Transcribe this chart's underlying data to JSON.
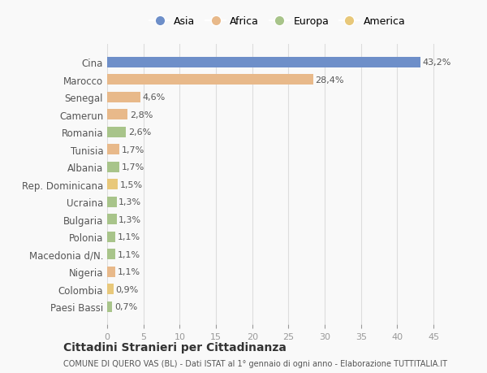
{
  "categories": [
    "Cina",
    "Marocco",
    "Senegal",
    "Camerun",
    "Romania",
    "Tunisia",
    "Albania",
    "Rep. Dominicana",
    "Ucraina",
    "Bulgaria",
    "Polonia",
    "Macedonia d/N.",
    "Nigeria",
    "Colombia",
    "Paesi Bassi"
  ],
  "values": [
    43.2,
    28.4,
    4.6,
    2.8,
    2.6,
    1.7,
    1.7,
    1.5,
    1.3,
    1.3,
    1.1,
    1.1,
    1.1,
    0.9,
    0.7
  ],
  "labels": [
    "43,2%",
    "28,4%",
    "4,6%",
    "2,8%",
    "2,6%",
    "1,7%",
    "1,7%",
    "1,5%",
    "1,3%",
    "1,3%",
    "1,1%",
    "1,1%",
    "1,1%",
    "0,9%",
    "0,7%"
  ],
  "colors": [
    "#6e8fc9",
    "#e8b98a",
    "#e8b98a",
    "#e8b98a",
    "#a8c48a",
    "#e8b98a",
    "#a8c48a",
    "#e8c87a",
    "#a8c48a",
    "#a8c48a",
    "#a8c48a",
    "#a8c48a",
    "#e8b98a",
    "#e8c87a",
    "#a8c48a"
  ],
  "legend_labels": [
    "Asia",
    "Africa",
    "Europa",
    "America"
  ],
  "legend_colors": [
    "#6e8fc9",
    "#e8b98a",
    "#a8c48a",
    "#e8c87a"
  ],
  "xlim": [
    0,
    47
  ],
  "xticks": [
    0,
    5,
    10,
    15,
    20,
    25,
    30,
    35,
    40,
    45
  ],
  "title": "Cittadini Stranieri per Cittadinanza",
  "subtitle": "COMUNE DI QUERO VAS (BL) - Dati ISTAT al 1° gennaio di ogni anno - Elaborazione TUTTITALIA.IT",
  "background_color": "#f9f9f9",
  "bar_height": 0.6,
  "grid_color": "#dddddd"
}
